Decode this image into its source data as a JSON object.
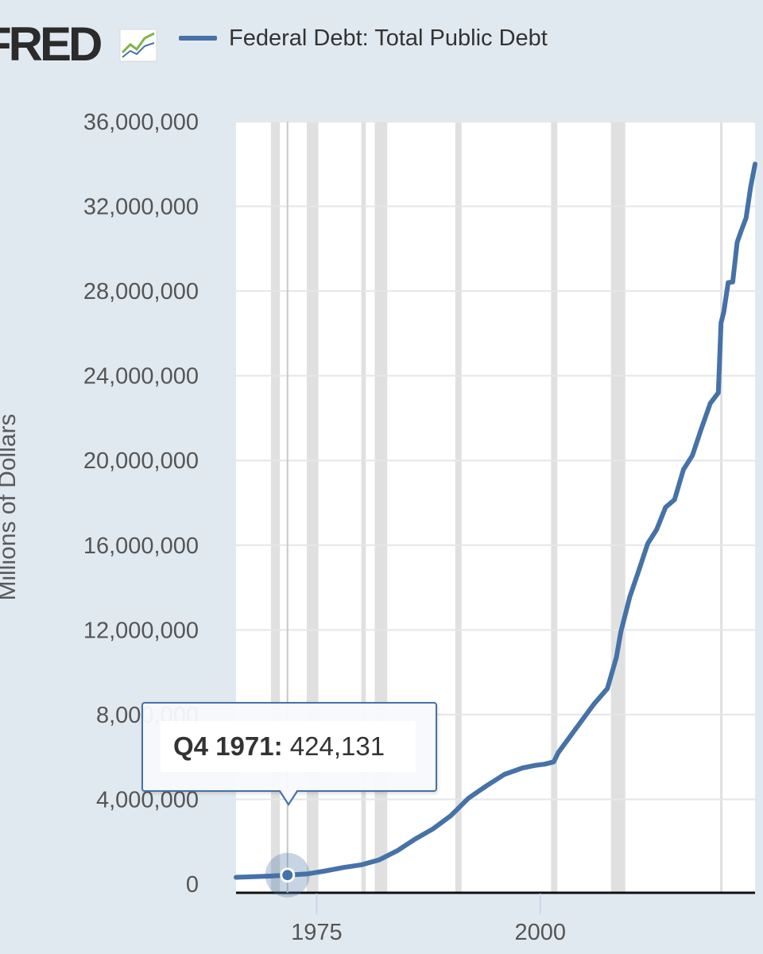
{
  "logo": {
    "text": "FRED"
  },
  "colors": {
    "series": "#4572a7",
    "recession": "#e0e0e0",
    "grid": "#e6e6e6",
    "background": "#e1e9f0",
    "plot": "#ffffff"
  },
  "icons": {
    "logo_icon": "fred-chart-icon"
  },
  "tooltip": {
    "date": "Q4 1971:",
    "value": "424,131"
  },
  "chart_data": {
    "type": "line",
    "title": "",
    "ylabel": "Millions of Dollars",
    "xlabel": "",
    "xlim": [
      1966.0,
      2024.0
    ],
    "ylim": [
      0,
      36000000
    ],
    "yticks": [
      {
        "value": 0,
        "label": "0"
      },
      {
        "value": 4000000,
        "label": "4,000,000"
      },
      {
        "value": 8000000,
        "label": "8,000,000"
      },
      {
        "value": 12000000,
        "label": "12,000,000"
      },
      {
        "value": 16000000,
        "label": "16,000,000"
      },
      {
        "value": 20000000,
        "label": "20,000,000"
      },
      {
        "value": 24000000,
        "label": "24,000,000"
      },
      {
        "value": 28000000,
        "label": "28,000,000"
      },
      {
        "value": 32000000,
        "label": "32,000,000"
      },
      {
        "value": 36000000,
        "label": "36,000,000"
      }
    ],
    "xticks": [
      {
        "value": 1975,
        "label": "1975"
      },
      {
        "value": 2000,
        "label": "2000"
      }
    ],
    "grid": true,
    "legend": "top-left",
    "recessions": [
      [
        1969.9,
        1970.9
      ],
      [
        1973.9,
        1975.2
      ],
      [
        1980.0,
        1980.5
      ],
      [
        1981.5,
        1982.9
      ],
      [
        1990.5,
        1991.2
      ],
      [
        2001.2,
        2001.9
      ],
      [
        2007.9,
        2009.5
      ],
      [
        2020.1,
        2020.3
      ]
    ],
    "highlight": {
      "x": 1971.75,
      "y": 424131
    },
    "series": [
      {
        "name": "Federal Debt: Total Public Debt",
        "x": [
          1966.0,
          1968,
          1970,
          1971.75,
          1974,
          1976,
          1978,
          1980,
          1982,
          1984,
          1986,
          1988,
          1990,
          1992,
          1994,
          1996,
          1998,
          1999.5,
          2000.5,
          2001.5,
          2002,
          2004,
          2006,
          2007.5,
          2008.5,
          2009,
          2010,
          2011,
          2012,
          2013,
          2014,
          2015,
          2016,
          2017,
          2018,
          2019,
          2019.9,
          2020.2,
          2020.5,
          2021,
          2021.5,
          2022,
          2022.5,
          2023,
          2023.5,
          2024.0
        ],
        "y": [
          320000,
          350000,
          380000,
          424131,
          480000,
          620000,
          780000,
          907000,
          1140000,
          1570000,
          2120000,
          2600000,
          3230000,
          4060000,
          4640000,
          5180000,
          5480000,
          5610000,
          5660000,
          5770000,
          6200000,
          7350000,
          8500000,
          9230000,
          10700000,
          11900000,
          13560000,
          14790000,
          16070000,
          16740000,
          17790000,
          18150000,
          19570000,
          20240000,
          21500000,
          22700000,
          23200000,
          26500000,
          27000000,
          28400000,
          28430000,
          30300000,
          30900000,
          31450000,
          32900000,
          34000000
        ]
      }
    ]
  }
}
